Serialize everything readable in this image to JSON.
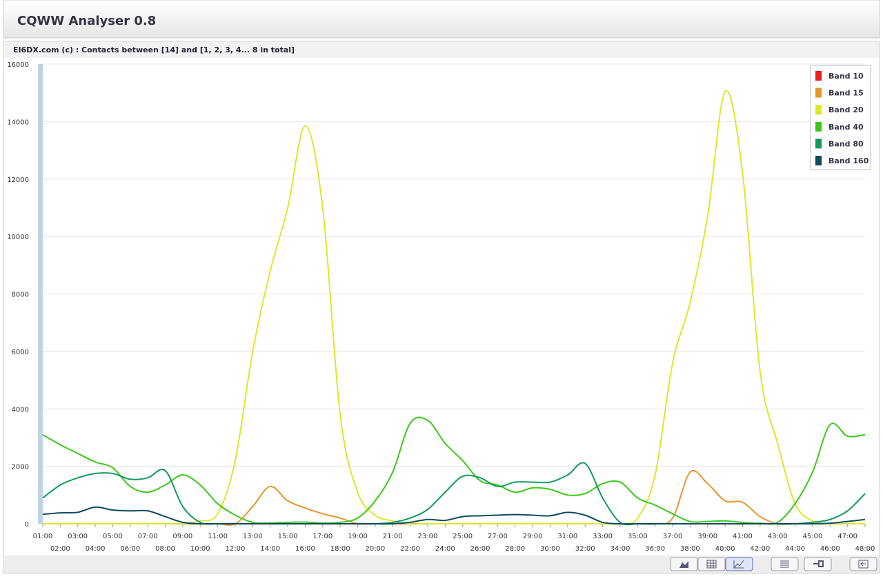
{
  "header": {
    "title": "CQWW Analyser 0.8"
  },
  "chart_data": {
    "type": "line",
    "title": "EI6DX.com (c) : Contacts between [14] and [1, 2, 3, 4... 8 in total]",
    "categories": [
      "01:00",
      "02:00",
      "03:00",
      "04:00",
      "05:00",
      "06:00",
      "07:00",
      "08:00",
      "09:00",
      "10:00",
      "11:00",
      "12:00",
      "13:00",
      "14:00",
      "15:00",
      "16:00",
      "17:00",
      "18:00",
      "19:00",
      "20:00",
      "21:00",
      "22:00",
      "23:00",
      "24:00",
      "25:00",
      "26:00",
      "27:00",
      "28:00",
      "29:00",
      "30:00",
      "31:00",
      "32:00",
      "33:00",
      "34:00",
      "35:00",
      "36:00",
      "37:00",
      "38:00",
      "39:00",
      "40:00",
      "41:00",
      "42:00",
      "43:00",
      "44:00",
      "45:00",
      "46:00",
      "47:00",
      "48:00"
    ],
    "series": [
      {
        "name": "Band 10",
        "color": "#e8201e",
        "values": [
          0,
          0,
          0,
          0,
          0,
          0,
          0,
          0,
          0,
          0,
          0,
          0,
          0,
          0,
          0,
          0,
          0,
          0,
          0,
          0,
          0,
          0,
          0,
          0,
          0,
          0,
          0,
          0,
          0,
          0,
          0,
          0,
          0,
          0,
          0,
          0,
          0,
          0,
          0,
          0,
          0,
          0,
          0,
          0,
          0,
          0,
          0,
          0
        ]
      },
      {
        "name": "Band 15",
        "color": "#e5962a",
        "values": [
          0,
          0,
          0,
          0,
          0,
          0,
          0,
          0,
          0,
          0,
          0,
          0,
          600,
          1300,
          800,
          550,
          350,
          200,
          0,
          0,
          0,
          0,
          0,
          0,
          0,
          0,
          0,
          0,
          0,
          0,
          0,
          0,
          0,
          0,
          0,
          0,
          200,
          1800,
          1400,
          800,
          750,
          250,
          0,
          0,
          0,
          0,
          0,
          0
        ]
      },
      {
        "name": "Band 20",
        "color": "#dde826",
        "values": [
          0,
          0,
          0,
          0,
          0,
          0,
          0,
          0,
          0,
          100,
          350,
          2200,
          6000,
          8800,
          11000,
          13850,
          11000,
          3800,
          1100,
          300,
          100,
          0,
          0,
          0,
          0,
          0,
          0,
          0,
          0,
          0,
          0,
          0,
          0,
          0,
          200,
          1700,
          5600,
          7700,
          10700,
          15050,
          12200,
          5300,
          2800,
          700,
          100,
          0,
          0,
          0
        ]
      },
      {
        "name": "Band 40",
        "color": "#3cc81a",
        "values": [
          3100,
          2750,
          2450,
          2150,
          1950,
          1300,
          1100,
          1350,
          1700,
          1350,
          700,
          300,
          50,
          30,
          50,
          60,
          30,
          50,
          200,
          800,
          1800,
          3500,
          3600,
          2800,
          2200,
          1500,
          1350,
          1100,
          1250,
          1200,
          1000,
          1050,
          1400,
          1450,
          900,
          650,
          350,
          80,
          80,
          100,
          50,
          20,
          50,
          700,
          1800,
          3450,
          3050,
          3100
        ]
      },
      {
        "name": "Band 80",
        "color": "#119a5c",
        "values": [
          900,
          1350,
          1600,
          1750,
          1750,
          1550,
          1600,
          1850,
          600,
          50,
          0,
          0,
          0,
          0,
          0,
          0,
          0,
          0,
          0,
          0,
          50,
          200,
          500,
          1100,
          1650,
          1600,
          1300,
          1450,
          1450,
          1450,
          1700,
          2100,
          900,
          50,
          0,
          0,
          0,
          0,
          0,
          0,
          0,
          0,
          0,
          0,
          50,
          150,
          450,
          1050
        ]
      },
      {
        "name": "Band 160",
        "color": "#0c4a5c",
        "values": [
          330,
          380,
          400,
          580,
          480,
          450,
          450,
          250,
          50,
          0,
          0,
          0,
          0,
          0,
          0,
          0,
          0,
          0,
          0,
          0,
          0,
          50,
          150,
          120,
          250,
          280,
          300,
          320,
          300,
          280,
          400,
          300,
          50,
          0,
          0,
          0,
          0,
          0,
          0,
          0,
          0,
          0,
          0,
          0,
          0,
          20,
          80,
          150
        ]
      }
    ],
    "ylim": [
      0,
      16000
    ],
    "yticks": [
      0,
      2000,
      4000,
      6000,
      8000,
      10000,
      12000,
      14000,
      16000
    ],
    "grid": true,
    "legend": "top-right"
  }
}
